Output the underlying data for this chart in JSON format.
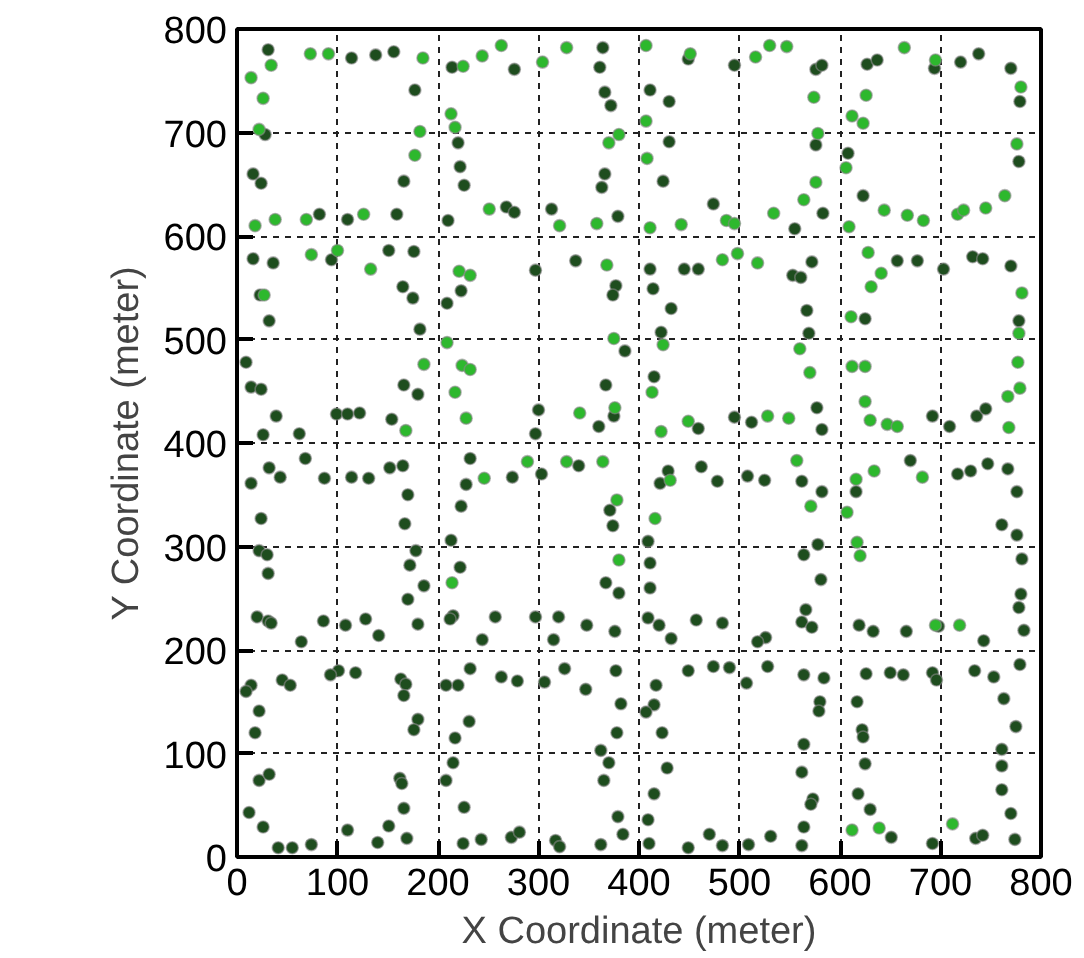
{
  "chart_data": {
    "type": "scatter",
    "xlabel": "X Coordinate (meter)",
    "ylabel": "Y Coordinate (meter)",
    "xlim": [
      0,
      800
    ],
    "ylim": [
      0,
      800
    ],
    "xticks": [
      0,
      100,
      200,
      300,
      400,
      500,
      600,
      700,
      800
    ],
    "yticks": [
      0,
      100,
      200,
      300,
      400,
      500,
      600,
      700,
      800
    ],
    "grid": true,
    "marker": "circle",
    "series": [
      {
        "color": "#1e4d1e",
        "x": [
          31,
          114,
          138,
          156,
          214,
          276,
          177,
          28,
          220,
          16,
          24,
          166,
          222,
          226,
          268,
          276,
          210,
          159,
          110,
          82,
          94,
          151,
          176,
          16,
          36,
          23,
          32,
          165,
          175,
          223,
          209,
          182,
          9,
          14,
          24,
          166,
          180,
          39,
          99,
          110,
          122,
          154,
          62,
          26,
          364,
          361,
          366,
          372,
          366,
          363,
          313,
          379,
          337,
          297,
          377,
          374,
          386,
          367,
          375,
          360,
          300,
          297,
          449,
          495,
          576,
          582,
          411,
          430,
          576,
          430,
          424,
          583,
          555,
          474,
          445,
          459,
          411,
          572,
          553,
          561,
          414,
          432,
          567,
          422,
          569,
          415,
          577,
          495,
          512,
          582,
          459,
          627,
          637,
          694,
          720,
          738,
          770,
          779,
          608,
          778,
          623,
          657,
          677,
          703,
          732,
          742,
          770,
          778,
          625,
          692,
          709,
          736,
          745,
          32,
          43,
          14,
          68,
          87,
          114,
          131,
          152,
          165,
          170,
          167,
          24,
          232,
          228,
          223,
          213,
          274,
          303,
          340,
          371,
          374,
          22,
          30,
          31,
          178,
          172,
          186,
          170,
          20,
          31,
          34,
          86,
          64,
          108,
          128,
          141,
          180,
          222,
          215,
          212,
          257,
          244,
          297,
          320,
          315,
          348,
          376,
          367,
          380,
          14,
          9,
          45,
          53,
          22,
          18,
          101,
          118,
          93,
          163,
          168,
          166,
          180,
          176,
          232,
          220,
          208,
          263,
          279,
          231,
          217,
          306,
          326,
          347,
          377,
          382,
          378,
          362,
          22,
          32,
          12,
          26,
          41,
          55,
          74,
          162,
          164,
          166,
          110,
          140,
          151,
          169,
          215,
          208,
          226,
          225,
          243,
          273,
          281,
          317,
          321,
          362,
          370,
          365,
          379,
          384,
          429,
          421,
          462,
          478,
          409,
          508,
          525,
          562,
          582,
          616,
          670,
          717,
          730,
          747,
          767,
          776,
          761,
          776,
          411,
          411,
          409,
          420,
          432,
          457,
          483,
          578,
          564,
          581,
          566,
          562,
          572,
          526,
          518,
          619,
          633,
          666,
          698,
          743,
          781,
          780,
          778,
          783,
          417,
          449,
          474,
          490,
          415,
          407,
          423,
          507,
          528,
          564,
          584,
          580,
          579,
          564,
          626,
          650,
          663,
          692,
          696,
          617,
          622,
          623,
          734,
          753,
          779,
          763,
          775,
          761,
          428,
          415,
          409,
          410,
          449,
          470,
          483,
          562,
          573,
          571,
          564,
          509,
          531,
          562,
          625,
          618,
          630,
          651,
          692,
          735,
          742,
          761,
          761,
          770,
          774
        ],
        "values": [
          780,
          772,
          775,
          778,
          763,
          761,
          741,
          698,
          690,
          660,
          651,
          653,
          667,
          649,
          628,
          623,
          615,
          621,
          616,
          621,
          577,
          586,
          585,
          578,
          574,
          543,
          518,
          551,
          540,
          547,
          535,
          510,
          478,
          454,
          452,
          456,
          447,
          426,
          428,
          428,
          429,
          423,
          409,
          408,
          782,
          763,
          739,
          726,
          660,
          647,
          626,
          619,
          576,
          567,
          552,
          543,
          489,
          456,
          426,
          416,
          432,
          409,
          771,
          765,
          761,
          765,
          741,
          730,
          688,
          691,
          653,
          622,
          607,
          631,
          568,
          568,
          568,
          575,
          562,
          560,
          549,
          530,
          528,
          507,
          506,
          464,
          434,
          425,
          420,
          413,
          414,
          766,
          770,
          762,
          768,
          776,
          762,
          730,
          680,
          672,
          639,
          576,
          576,
          568,
          580,
          578,
          571,
          518,
          520,
          426,
          416,
          426,
          433,
          376,
          367,
          361,
          385,
          366,
          367,
          366,
          376,
          378,
          350,
          322,
          327,
          385,
          360,
          339,
          306,
          367,
          370,
          378,
          335,
          320,
          296,
          292,
          274,
          296,
          282,
          262,
          249,
          232,
          228,
          226,
          228,
          208,
          224,
          230,
          214,
          225,
          280,
          233,
          230,
          232,
          210,
          232,
          232,
          210,
          224,
          218,
          265,
          255,
          166,
          160,
          171,
          166,
          141,
          120,
          180,
          178,
          176,
          172,
          167,
          156,
          133,
          123,
          182,
          166,
          166,
          174,
          170,
          131,
          115,
          169,
          182,
          162,
          180,
          148,
          120,
          103,
          74,
          80,
          43,
          29,
          9,
          9,
          12,
          76,
          71,
          47,
          26,
          14,
          30,
          18,
          91,
          74,
          48,
          13,
          17,
          19,
          24,
          16,
          10,
          12,
          91,
          74,
          39,
          22,
          373,
          361,
          377,
          363,
          305,
          368,
          364,
          363,
          353,
          353,
          383,
          370,
          373,
          380,
          375,
          353,
          321,
          311,
          284,
          260,
          231,
          224,
          211,
          229,
          226,
          302,
          292,
          268,
          239,
          227,
          222,
          212,
          208,
          224,
          218,
          218,
          223,
          209,
          288,
          254,
          241,
          219,
          166,
          180,
          184,
          183,
          147,
          140,
          120,
          168,
          184,
          176,
          173,
          150,
          141,
          109,
          177,
          178,
          176,
          178,
          171,
          150,
          123,
          116,
          180,
          174,
          186,
          153,
          126,
          104,
          86,
          61,
          36,
          13,
          9,
          22,
          11,
          82,
          56,
          51,
          29,
          12,
          20,
          11,
          90,
          61,
          46,
          19,
          13,
          18,
          21,
          88,
          65,
          42,
          17
        ]
      },
      {
        "color": "#2db82d",
        "x": [
          73,
          91,
          185,
          34,
          14,
          225,
          244,
          263,
          26,
          213,
          217,
          22,
          182,
          177,
          251,
          126,
          69,
          38,
          18,
          74,
          100,
          133,
          221,
          232,
          27,
          209,
          186,
          224,
          232,
          217,
          228,
          168,
          304,
          328,
          380,
          370,
          321,
          358,
          368,
          375,
          376,
          341,
          407,
          451,
          516,
          530,
          547,
          407,
          574,
          578,
          408,
          576,
          564,
          534,
          487,
          495,
          442,
          411,
          483,
          498,
          518,
          424,
          560,
          570,
          413,
          528,
          549,
          449,
          422,
          664,
          695,
          780,
          626,
          612,
          623,
          606,
          776,
          644,
          667,
          683,
          609,
          717,
          723,
          745,
          764,
          628,
          641,
          631,
          781,
          778,
          611,
          612,
          625,
          625,
          630,
          647,
          657,
          768,
          767,
          779,
          777,
          246,
          289,
          328,
          364,
          378,
          214,
          380,
          431,
          416,
          557,
          571,
          616,
          634,
          682,
          607,
          617,
          620,
          695,
          719,
          612,
          639,
          712
        ],
        "values": [
          776,
          776,
          772,
          765,
          753,
          764,
          774,
          784,
          733,
          718,
          705,
          703,
          701,
          678,
          626,
          621,
          616,
          616,
          610,
          582,
          586,
          568,
          566,
          562,
          543,
          497,
          476,
          475,
          471,
          449,
          424,
          412,
          768,
          782,
          698,
          690,
          610,
          612,
          572,
          501,
          434,
          429,
          784,
          776,
          773,
          784,
          783,
          711,
          734,
          699,
          675,
          652,
          635,
          622,
          615,
          612,
          611,
          608,
          577,
          583,
          574,
          495,
          491,
          468,
          449,
          426,
          424,
          421,
          411,
          782,
          770,
          744,
          736,
          716,
          709,
          666,
          689,
          625,
          620,
          615,
          609,
          621,
          625,
          627,
          639,
          584,
          564,
          551,
          545,
          506,
          522,
          474,
          474,
          440,
          422,
          418,
          416,
          415,
          445,
          453,
          478,
          366,
          382,
          382,
          382,
          345,
          265,
          287,
          364,
          327,
          383,
          339,
          365,
          373,
          367,
          333,
          304,
          291,
          224,
          224,
          26,
          28,
          32
        ]
      }
    ]
  }
}
